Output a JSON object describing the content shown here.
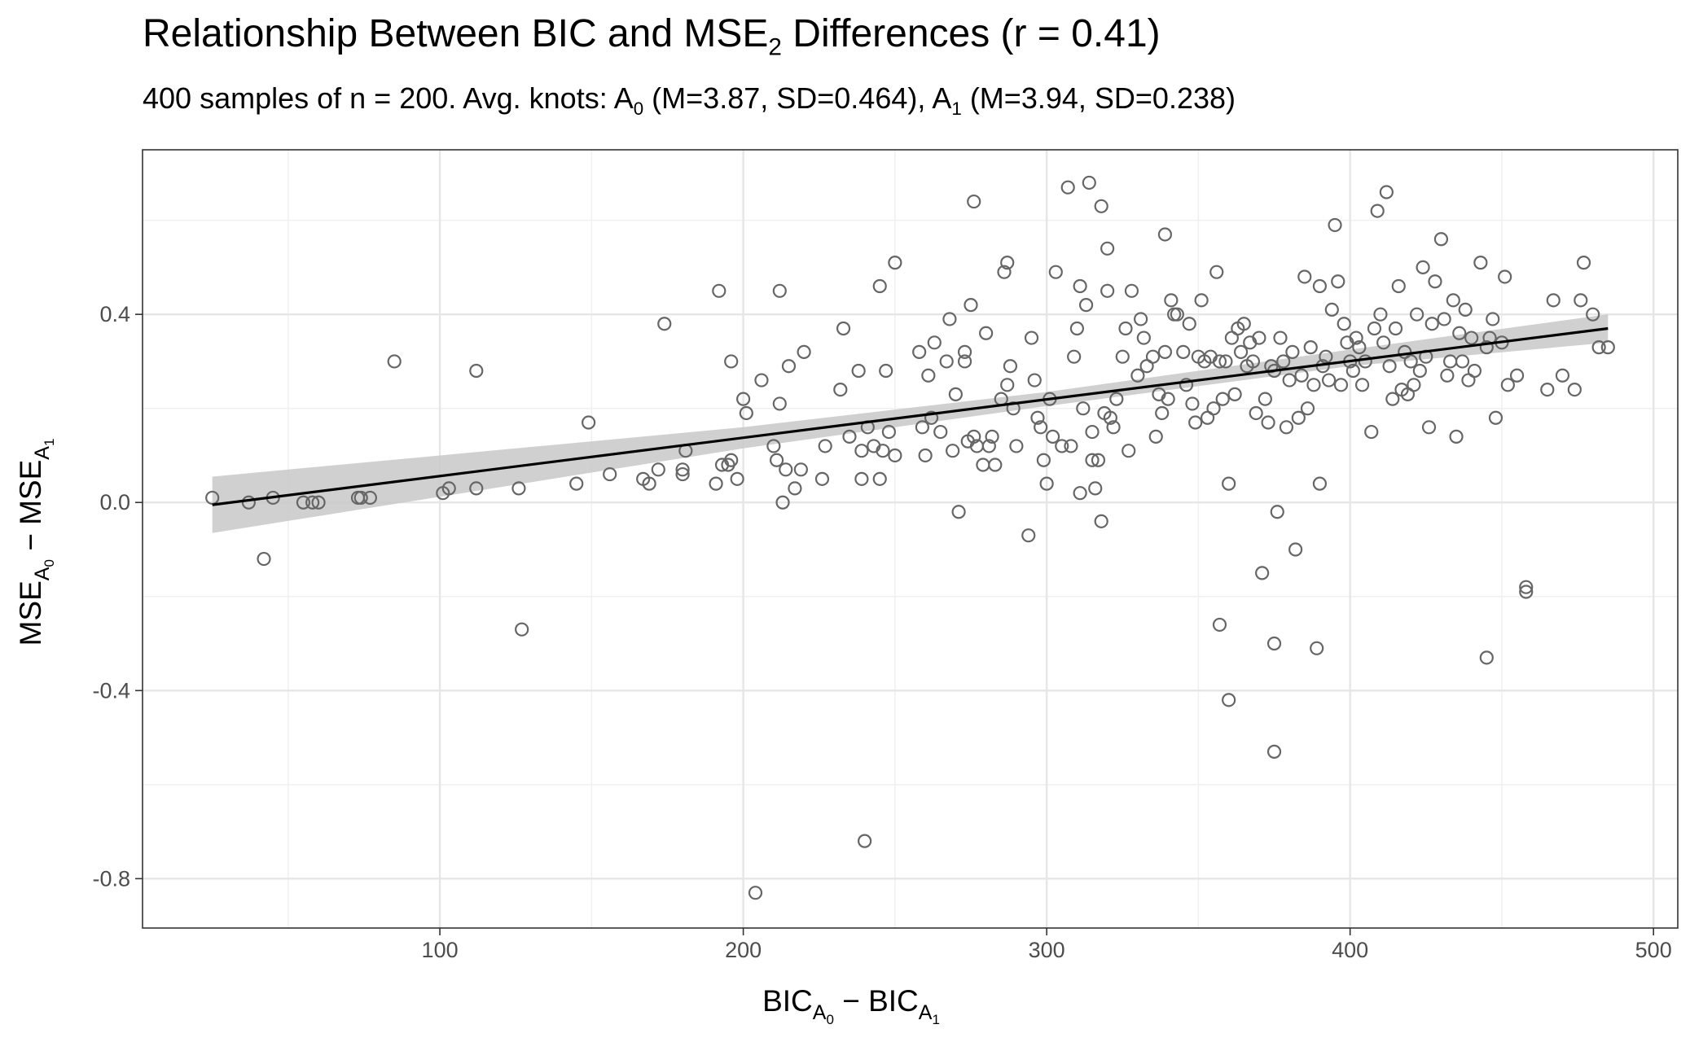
{
  "chart_data": {
    "type": "scatter",
    "title": {
      "main": "Relationship Between BIC and MSE",
      "sub": "2",
      "rest": " Differences (r = 0.41)"
    },
    "subtitle": {
      "prefix": "400 samples of n = 200. Avg. knots:  A",
      "sub0": "0",
      "mid": " (M=3.87, SD=0.464), A",
      "sub1": "1",
      "suffix": " (M=3.94, SD=0.238)"
    },
    "xlabel": {
      "a": "BIC",
      "sa": "A",
      "ssa": "0",
      "op": " − ",
      "b": "BIC",
      "sb": "A",
      "ssb": "1"
    },
    "ylabel": {
      "a": "MSE",
      "sa": "A",
      "ssa": "0",
      "op": " − ",
      "b": "MSE",
      "sb": "A",
      "ssb": "1"
    },
    "xlim": [
      2,
      508
    ],
    "ylim": [
      -0.905,
      0.75
    ],
    "x_ticks": [
      100,
      200,
      300,
      400,
      500
    ],
    "y_ticks": [
      -0.8,
      -0.4,
      0.0,
      0.4
    ],
    "y_tick_labels": [
      "-0.8",
      "-0.4",
      "0.0",
      "0.4"
    ],
    "grid": true,
    "legend": "none",
    "point_color": "#666666",
    "line_color": "#000000",
    "band_color": "#c8c8c8",
    "fit_line": {
      "x": [
        25,
        485
      ],
      "y": [
        -0.005,
        0.37
      ]
    },
    "confidence_band": {
      "x": [
        25,
        200,
        300,
        400,
        485
      ],
      "lower": [
        -0.065,
        0.115,
        0.205,
        0.29,
        0.34
      ],
      "upper": [
        0.055,
        0.16,
        0.235,
        0.325,
        0.4
      ]
    },
    "points": [
      [
        25,
        0.01
      ],
      [
        37,
        0.0
      ],
      [
        42,
        -0.12
      ],
      [
        45,
        0.01
      ],
      [
        55,
        0.0
      ],
      [
        58,
        0.0
      ],
      [
        60,
        0.0
      ],
      [
        73,
        0.01
      ],
      [
        74,
        0.01
      ],
      [
        77,
        0.01
      ],
      [
        85,
        0.3
      ],
      [
        101,
        0.02
      ],
      [
        103,
        0.03
      ],
      [
        112,
        0.03
      ],
      [
        112,
        0.28
      ],
      [
        126,
        0.03
      ],
      [
        127,
        -0.27
      ],
      [
        145,
        0.04
      ],
      [
        149,
        0.17
      ],
      [
        156,
        0.06
      ],
      [
        167,
        0.05
      ],
      [
        169,
        0.04
      ],
      [
        172,
        0.07
      ],
      [
        174,
        0.38
      ],
      [
        180,
        0.06
      ],
      [
        180,
        0.07
      ],
      [
        181,
        0.11
      ],
      [
        191,
        0.04
      ],
      [
        192,
        0.45
      ],
      [
        193,
        0.08
      ],
      [
        195,
        0.08
      ],
      [
        196,
        0.09
      ],
      [
        196,
        0.3
      ],
      [
        198,
        0.05
      ],
      [
        200,
        0.22
      ],
      [
        201,
        0.19
      ],
      [
        204,
        -0.83
      ],
      [
        206,
        0.26
      ],
      [
        210,
        0.12
      ],
      [
        211,
        0.09
      ],
      [
        212,
        0.21
      ],
      [
        212,
        0.45
      ],
      [
        213,
        0.0
      ],
      [
        214,
        0.07
      ],
      [
        215,
        0.29
      ],
      [
        217,
        0.03
      ],
      [
        219,
        0.07
      ],
      [
        220,
        0.32
      ],
      [
        226,
        0.05
      ],
      [
        227,
        0.12
      ],
      [
        232,
        0.24
      ],
      [
        233,
        0.37
      ],
      [
        235,
        0.14
      ],
      [
        238,
        0.28
      ],
      [
        239,
        0.05
      ],
      [
        239,
        0.11
      ],
      [
        240,
        -0.72
      ],
      [
        241,
        0.16
      ],
      [
        243,
        0.12
      ],
      [
        245,
        0.05
      ],
      [
        245,
        0.46
      ],
      [
        246,
        0.11
      ],
      [
        247,
        0.28
      ],
      [
        248,
        0.15
      ],
      [
        250,
        0.51
      ],
      [
        250,
        0.1
      ],
      [
        258,
        0.32
      ],
      [
        259,
        0.16
      ],
      [
        260,
        0.1
      ],
      [
        261,
        0.27
      ],
      [
        262,
        0.18
      ],
      [
        263,
        0.34
      ],
      [
        265,
        0.15
      ],
      [
        267,
        0.3
      ],
      [
        268,
        0.39
      ],
      [
        269,
        0.11
      ],
      [
        270,
        0.23
      ],
      [
        271,
        -0.02
      ],
      [
        273,
        0.3
      ],
      [
        273,
        0.32
      ],
      [
        274,
        0.13
      ],
      [
        275,
        0.42
      ],
      [
        276,
        0.64
      ],
      [
        276,
        0.14
      ],
      [
        277,
        0.12
      ],
      [
        279,
        0.08
      ],
      [
        280,
        0.36
      ],
      [
        281,
        0.12
      ],
      [
        282,
        0.14
      ],
      [
        283,
        0.08
      ],
      [
        285,
        0.22
      ],
      [
        286,
        0.49
      ],
      [
        287,
        0.51
      ],
      [
        287,
        0.25
      ],
      [
        288,
        0.29
      ],
      [
        289,
        0.2
      ],
      [
        290,
        0.12
      ],
      [
        294,
        -0.07
      ],
      [
        295,
        0.35
      ],
      [
        296,
        0.26
      ],
      [
        297,
        0.18
      ],
      [
        298,
        0.16
      ],
      [
        299,
        0.09
      ],
      [
        300,
        0.04
      ],
      [
        301,
        0.22
      ],
      [
        302,
        0.14
      ],
      [
        303,
        0.49
      ],
      [
        305,
        0.12
      ],
      [
        307,
        0.67
      ],
      [
        308,
        0.12
      ],
      [
        309,
        0.31
      ],
      [
        310,
        0.37
      ],
      [
        311,
        0.46
      ],
      [
        311,
        0.02
      ],
      [
        312,
        0.2
      ],
      [
        313,
        0.42
      ],
      [
        314,
        0.68
      ],
      [
        315,
        0.09
      ],
      [
        315,
        0.15
      ],
      [
        316,
        0.03
      ],
      [
        317,
        0.09
      ],
      [
        318,
        0.63
      ],
      [
        318,
        -0.04
      ],
      [
        319,
        0.19
      ],
      [
        320,
        0.54
      ],
      [
        320,
        0.45
      ],
      [
        321,
        0.18
      ],
      [
        322,
        0.16
      ],
      [
        323,
        0.22
      ],
      [
        325,
        0.31
      ],
      [
        326,
        0.37
      ],
      [
        327,
        0.11
      ],
      [
        328,
        0.45
      ],
      [
        330,
        0.27
      ],
      [
        331,
        0.39
      ],
      [
        332,
        0.35
      ],
      [
        333,
        0.29
      ],
      [
        335,
        0.31
      ],
      [
        336,
        0.14
      ],
      [
        337,
        0.23
      ],
      [
        338,
        0.19
      ],
      [
        339,
        0.57
      ],
      [
        339,
        0.32
      ],
      [
        340,
        0.22
      ],
      [
        341,
        0.43
      ],
      [
        342,
        0.4
      ],
      [
        343,
        0.4
      ],
      [
        345,
        0.32
      ],
      [
        346,
        0.25
      ],
      [
        347,
        0.38
      ],
      [
        348,
        0.21
      ],
      [
        349,
        0.17
      ],
      [
        350,
        0.31
      ],
      [
        351,
        0.43
      ],
      [
        352,
        0.3
      ],
      [
        353,
        0.18
      ],
      [
        354,
        0.31
      ],
      [
        355,
        0.2
      ],
      [
        356,
        0.49
      ],
      [
        357,
        0.3
      ],
      [
        357,
        -0.26
      ],
      [
        358,
        0.22
      ],
      [
        359,
        0.3
      ],
      [
        360,
        0.04
      ],
      [
        360,
        -0.42
      ],
      [
        361,
        0.35
      ],
      [
        362,
        0.23
      ],
      [
        363,
        0.37
      ],
      [
        364,
        0.32
      ],
      [
        365,
        0.38
      ],
      [
        366,
        0.29
      ],
      [
        367,
        0.34
      ],
      [
        368,
        0.3
      ],
      [
        369,
        0.19
      ],
      [
        370,
        0.35
      ],
      [
        371,
        -0.15
      ],
      [
        372,
        0.22
      ],
      [
        373,
        0.17
      ],
      [
        374,
        0.29
      ],
      [
        375,
        0.28
      ],
      [
        375,
        -0.3
      ],
      [
        375,
        -0.53
      ],
      [
        376,
        -0.02
      ],
      [
        377,
        0.35
      ],
      [
        378,
        0.3
      ],
      [
        379,
        0.16
      ],
      [
        380,
        0.26
      ],
      [
        381,
        0.32
      ],
      [
        382,
        -0.1
      ],
      [
        383,
        0.18
      ],
      [
        384,
        0.27
      ],
      [
        385,
        0.48
      ],
      [
        386,
        0.2
      ],
      [
        387,
        0.33
      ],
      [
        388,
        0.25
      ],
      [
        389,
        -0.31
      ],
      [
        390,
        0.04
      ],
      [
        390,
        0.46
      ],
      [
        391,
        0.29
      ],
      [
        392,
        0.31
      ],
      [
        393,
        0.26
      ],
      [
        394,
        0.41
      ],
      [
        395,
        0.59
      ],
      [
        396,
        0.47
      ],
      [
        397,
        0.25
      ],
      [
        398,
        0.38
      ],
      [
        399,
        0.34
      ],
      [
        400,
        0.3
      ],
      [
        401,
        0.28
      ],
      [
        402,
        0.35
      ],
      [
        403,
        0.33
      ],
      [
        404,
        0.25
      ],
      [
        405,
        0.3
      ],
      [
        407,
        0.15
      ],
      [
        408,
        0.37
      ],
      [
        409,
        0.62
      ],
      [
        410,
        0.4
      ],
      [
        411,
        0.34
      ],
      [
        412,
        0.66
      ],
      [
        413,
        0.29
      ],
      [
        414,
        0.22
      ],
      [
        415,
        0.37
      ],
      [
        416,
        0.46
      ],
      [
        417,
        0.24
      ],
      [
        418,
        0.32
      ],
      [
        419,
        0.23
      ],
      [
        420,
        0.3
      ],
      [
        421,
        0.25
      ],
      [
        422,
        0.4
      ],
      [
        423,
        0.28
      ],
      [
        424,
        0.5
      ],
      [
        425,
        0.31
      ],
      [
        426,
        0.16
      ],
      [
        427,
        0.38
      ],
      [
        428,
        0.47
      ],
      [
        430,
        0.56
      ],
      [
        431,
        0.39
      ],
      [
        432,
        0.27
      ],
      [
        433,
        0.3
      ],
      [
        434,
        0.43
      ],
      [
        435,
        0.14
      ],
      [
        436,
        0.36
      ],
      [
        437,
        0.3
      ],
      [
        438,
        0.41
      ],
      [
        439,
        0.26
      ],
      [
        440,
        0.35
      ],
      [
        441,
        0.28
      ],
      [
        443,
        0.51
      ],
      [
        445,
        0.33
      ],
      [
        445,
        -0.33
      ],
      [
        446,
        0.35
      ],
      [
        447,
        0.39
      ],
      [
        448,
        0.18
      ],
      [
        450,
        0.34
      ],
      [
        451,
        0.48
      ],
      [
        452,
        0.25
      ],
      [
        455,
        0.27
      ],
      [
        458,
        -0.18
      ],
      [
        458,
        -0.19
      ],
      [
        465,
        0.24
      ],
      [
        467,
        0.43
      ],
      [
        470,
        0.27
      ],
      [
        474,
        0.24
      ],
      [
        476,
        0.43
      ],
      [
        477,
        0.51
      ],
      [
        480,
        0.4
      ],
      [
        482,
        0.33
      ],
      [
        485,
        0.33
      ]
    ]
  }
}
